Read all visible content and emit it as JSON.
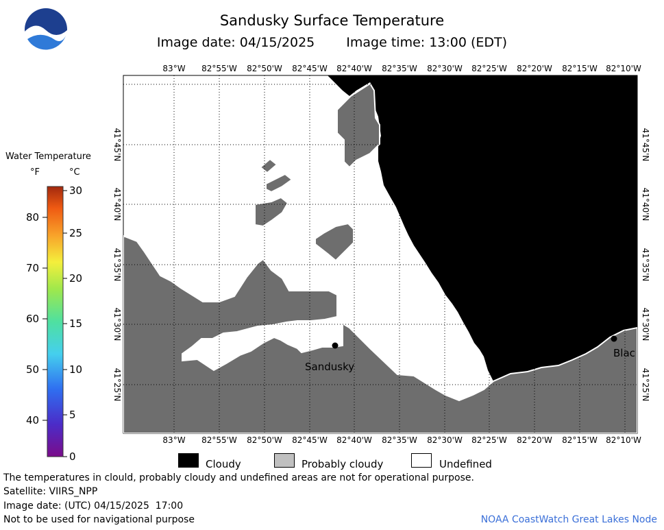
{
  "header": {
    "title": "Sandusky Surface Temperature",
    "image_date": "Image date: 04/15/2025",
    "image_time": "Image time: 13:00 (EDT)"
  },
  "logo": {
    "text": "NOAA"
  },
  "map": {
    "lon_labels": [
      "83°W",
      "82°55'W",
      "82°50'W",
      "82°45'W",
      "82°40'W",
      "82°35'W",
      "82°30'W",
      "82°25'W",
      "82°20'W",
      "82°15'W",
      "82°10'W"
    ],
    "lat_labels": [
      "41°45'N",
      "41°40'N",
      "41°35'N",
      "41°30'N",
      "41°25'N"
    ],
    "land_color": "#6e6e6e",
    "cloud_color": "#000000",
    "cities": [
      {
        "name": "Sandusky"
      },
      {
        "name": "Blac"
      }
    ]
  },
  "colorbar": {
    "title": "Water Temperature",
    "unit_f": "°F",
    "unit_c": "°C",
    "f_labels": [
      "80",
      "70",
      "60",
      "50",
      "40"
    ],
    "c_labels": [
      "30",
      "25",
      "20",
      "15",
      "10",
      "5",
      "0"
    ]
  },
  "legend": {
    "cloudy": "Cloudy",
    "probably_cloudy": "Probably cloudy",
    "undefined": "Undefined"
  },
  "footer": {
    "note": "The temperatures in clould, probably cloudy and undefined areas are not for operational purpose.",
    "satellite": "Satellite: VIIRS_NPP",
    "utc_date": "Image date: (UTC) 04/15/2025  17:00",
    "nav_warning": "Not to be used for navigational purpose",
    "credit": "NOAA CoastWatch Great Lakes Node"
  }
}
